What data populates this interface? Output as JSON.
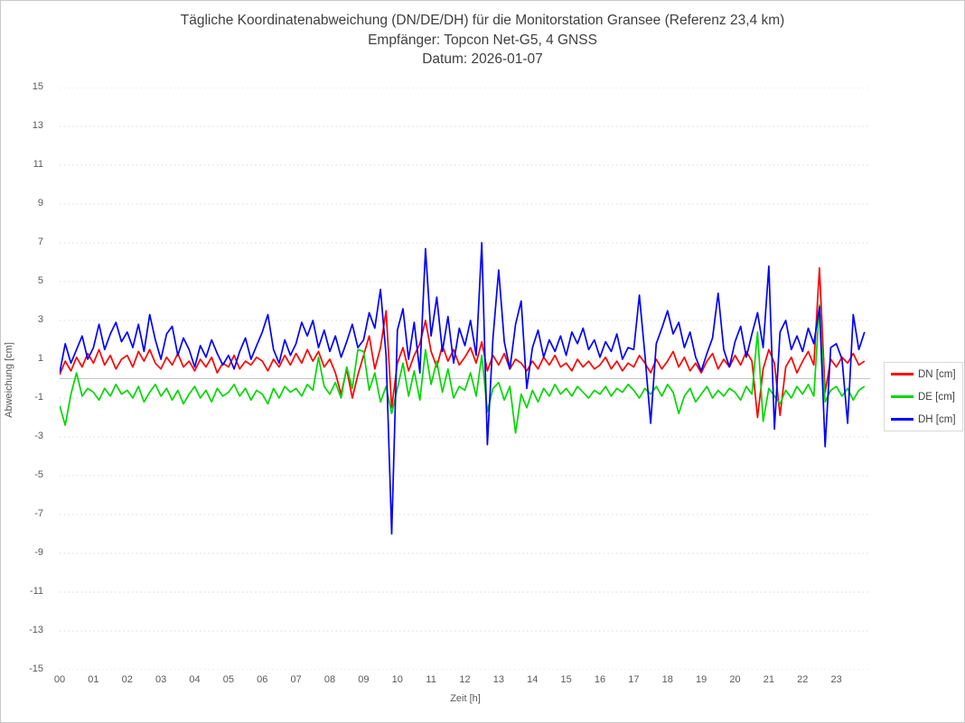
{
  "window": {
    "background": "#ffffff",
    "border_color": "#c9c9c9"
  },
  "header": {
    "title": "Tägliche Koordinatenabweichung (DN/DE/DH) für die Monitorstation Gransee (Referenz 23,4 km)",
    "subtitle": "Empfänger: Topcon Net-G5, 4 GNSS",
    "date_line": "Datum: 2026-01-07"
  },
  "legend": {
    "position": "right",
    "items": [
      {
        "label": "DN [cm]",
        "color": "#ff0000"
      },
      {
        "label": "DE [cm]",
        "color": "#00d800"
      },
      {
        "label": "DH [cm]",
        "color": "#0000ff"
      }
    ]
  },
  "chart_data": {
    "type": "line",
    "title": "Tägliche Koordinatenabweichung (DN/DE/DH) für die Monitorstation Gransee (Referenz 23,4 km)",
    "subtitle": "Empfänger: Topcon Net-G5, 4 GNSS",
    "date": "2026-01-07",
    "xlabel": "Zeit [h]",
    "ylabel": "Abweichung [cm]",
    "xlim": [
      0,
      24
    ],
    "ylim": [
      -15,
      15
    ],
    "x_tick_labels": [
      "00",
      "01",
      "02",
      "03",
      "04",
      "05",
      "06",
      "07",
      "08",
      "09",
      "10",
      "11",
      "12",
      "13",
      "14",
      "15",
      "16",
      "17",
      "18",
      "19",
      "20",
      "21",
      "22",
      "23"
    ],
    "y_ticks": [
      15,
      13,
      11,
      9,
      7,
      5,
      3,
      1,
      -1,
      -3,
      -5,
      -7,
      -9,
      -11,
      -13,
      -15
    ],
    "grid": {
      "horizontal": "dotted at odd values",
      "zero_line": "solid",
      "grid_color": "#d9d9d9",
      "zero_color": "#c6c6c6"
    },
    "x_interval_minutes": 10,
    "legend_position": "right",
    "series": [
      {
        "name": "DN [cm]",
        "color": "#ff0000",
        "values": [
          0.2,
          0.9,
          0.4,
          1.1,
          0.6,
          1.3,
          0.8,
          1.5,
          0.7,
          1.2,
          0.5,
          1.0,
          1.2,
          0.6,
          1.4,
          0.9,
          1.5,
          0.8,
          0.5,
          1.1,
          0.7,
          1.3,
          0.6,
          0.9,
          0.4,
          1.0,
          0.6,
          1.1,
          0.3,
          0.8,
          0.6,
          1.2,
          0.5,
          0.9,
          0.7,
          1.1,
          0.9,
          0.4,
          1.0,
          0.6,
          1.2,
          0.7,
          1.3,
          0.8,
          1.5,
          0.9,
          1.4,
          0.6,
          1.0,
          0.3,
          -0.8,
          0.5,
          -1.0,
          0.2,
          1.2,
          2.2,
          0.5,
          1.6,
          3.5,
          -1.5,
          0.8,
          1.6,
          0.4,
          1.2,
          1.8,
          3.0,
          1.4,
          0.6,
          1.7,
          0.9,
          1.5,
          0.7,
          1.1,
          1.6,
          0.8,
          1.9,
          0.4,
          1.2,
          0.7,
          1.3,
          0.5,
          1.0,
          0.8,
          0.4,
          0.9,
          0.5,
          1.1,
          0.7,
          1.2,
          0.6,
          0.8,
          0.4,
          1.0,
          0.6,
          0.9,
          0.5,
          0.7,
          1.1,
          0.5,
          0.9,
          0.4,
          0.8,
          0.6,
          1.2,
          0.8,
          0.3,
          1.0,
          0.5,
          0.9,
          1.4,
          0.6,
          1.1,
          0.4,
          0.8,
          0.3,
          0.9,
          1.3,
          0.5,
          1.0,
          0.6,
          1.2,
          0.7,
          1.4,
          0.9,
          -2.0,
          0.5,
          1.5,
          0.8,
          -1.9,
          0.6,
          1.1,
          0.3,
          0.9,
          1.4,
          0.7,
          5.7,
          -0.7,
          1.0,
          0.6,
          1.1,
          0.8,
          1.3,
          0.7,
          0.9
        ]
      },
      {
        "name": "DE [cm]",
        "color": "#00d800",
        "values": [
          -1.4,
          -2.4,
          -0.8,
          0.3,
          -0.9,
          -0.5,
          -0.7,
          -1.1,
          -0.5,
          -0.9,
          -0.3,
          -0.8,
          -0.6,
          -1.0,
          -0.4,
          -1.2,
          -0.7,
          -0.3,
          -0.9,
          -0.5,
          -1.1,
          -0.6,
          -1.3,
          -0.8,
          -0.4,
          -1.0,
          -0.6,
          -1.2,
          -0.5,
          -0.9,
          -0.7,
          -0.3,
          -0.9,
          -0.5,
          -1.1,
          -0.6,
          -0.8,
          -1.3,
          -0.5,
          -1.0,
          -0.4,
          -0.7,
          -0.5,
          -0.9,
          -0.3,
          -0.6,
          1.1,
          -0.4,
          -0.8,
          -0.2,
          -1.0,
          0.6,
          -0.5,
          1.5,
          1.4,
          -0.6,
          0.3,
          -1.2,
          -0.4,
          -1.8,
          -0.5,
          0.8,
          -0.9,
          0.4,
          -1.1,
          1.5,
          -0.3,
          0.9,
          -0.7,
          0.5,
          -1.0,
          -0.4,
          -0.6,
          0.3,
          -0.9,
          1.2,
          -1.7,
          -0.5,
          -0.2,
          -1.1,
          -0.4,
          -2.8,
          -0.8,
          -1.5,
          -0.6,
          -1.2,
          -0.5,
          -0.9,
          -0.3,
          -0.8,
          -0.5,
          -0.9,
          -0.4,
          -0.7,
          -1.0,
          -0.6,
          -0.8,
          -0.4,
          -0.9,
          -0.5,
          -0.7,
          -0.3,
          -0.6,
          -1.0,
          -0.5,
          -0.8,
          -0.4,
          -0.9,
          -0.3,
          -0.7,
          -1.8,
          -0.9,
          -0.5,
          -1.2,
          -0.8,
          -0.4,
          -1.0,
          -0.6,
          -0.9,
          -0.5,
          -0.7,
          -1.1,
          -0.4,
          -0.8,
          2.4,
          -2.2,
          -0.5,
          -0.9,
          -1.3,
          -0.6,
          -1.0,
          -0.4,
          -0.8,
          -0.3,
          -0.9,
          3.8,
          -1.2,
          -0.6,
          -0.4,
          -0.9,
          -0.5,
          -1.1,
          -0.6,
          -0.4
        ]
      },
      {
        "name": "DH [cm]",
        "color": "#0000ff",
        "values": [
          0.3,
          1.8,
          0.8,
          1.5,
          2.2,
          1.0,
          1.6,
          2.8,
          1.5,
          2.3,
          2.9,
          1.9,
          2.4,
          1.6,
          2.8,
          1.4,
          3.3,
          2.0,
          1.0,
          2.3,
          2.7,
          1.2,
          2.1,
          1.5,
          0.6,
          1.7,
          1.1,
          2.0,
          1.3,
          0.7,
          1.2,
          0.5,
          1.4,
          2.1,
          1.0,
          1.7,
          2.4,
          3.3,
          1.5,
          0.8,
          2.0,
          1.2,
          1.8,
          2.9,
          2.2,
          3.0,
          1.6,
          2.5,
          1.4,
          2.2,
          1.1,
          1.9,
          2.8,
          1.6,
          2.0,
          3.4,
          2.6,
          4.6,
          1.2,
          -8.0,
          2.5,
          3.6,
          1.0,
          2.9,
          0.3,
          6.7,
          2.2,
          4.2,
          1.4,
          3.2,
          0.8,
          2.6,
          1.7,
          3.0,
          1.2,
          7.0,
          -3.4,
          2.1,
          5.6,
          1.9,
          0.5,
          2.8,
          4.0,
          -0.5,
          1.6,
          2.5,
          1.1,
          2.0,
          1.4,
          2.2,
          1.2,
          2.4,
          1.8,
          2.6,
          1.5,
          2.0,
          1.1,
          1.9,
          1.4,
          2.3,
          1.0,
          1.6,
          1.5,
          4.3,
          1.2,
          -2.3,
          1.8,
          2.6,
          3.5,
          2.3,
          2.9,
          1.6,
          2.4,
          1.1,
          0.4,
          1.3,
          2.1,
          4.4,
          1.5,
          0.6,
          1.9,
          2.7,
          1.1,
          2.3,
          3.4,
          1.6,
          5.8,
          -2.6,
          2.4,
          3.0,
          1.5,
          2.2,
          1.4,
          2.6,
          1.8,
          3.7,
          -3.5,
          1.6,
          1.8,
          1.0,
          -2.3,
          3.3,
          1.5,
          2.4
        ]
      }
    ]
  }
}
